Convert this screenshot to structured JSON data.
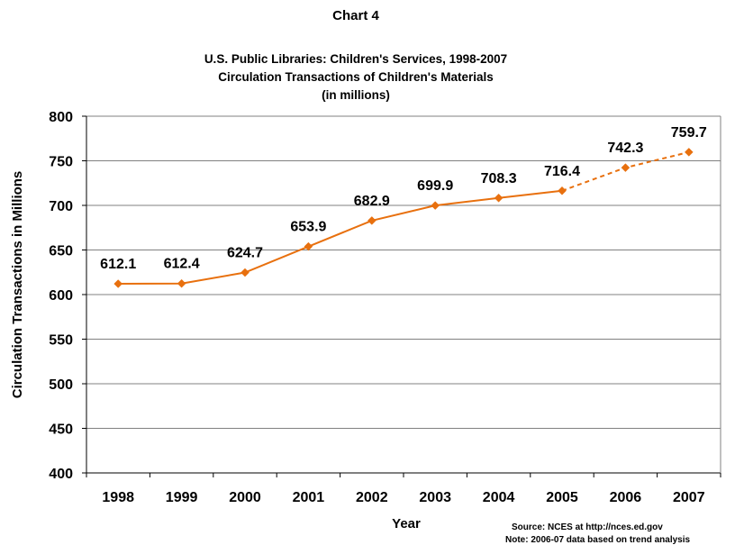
{
  "chart_data": {
    "type": "line",
    "chart_label": "Chart 4",
    "title": "U.S. Public Libraries: Children's Services, 1998-2007",
    "subtitle": "Circulation Transactions of Children's Materials",
    "subtitle2": "(in millions)",
    "xlabel": "Year",
    "ylabel": "Circulation Transactions in Millions",
    "categories": [
      "1998",
      "1999",
      "2000",
      "2001",
      "2002",
      "2003",
      "2004",
      "2005",
      "2006",
      "2007"
    ],
    "series": [
      {
        "values": [
          612.1,
          612.4,
          624.7,
          653.9,
          682.9,
          699.9,
          708.3,
          716.4,
          742.3,
          759.7
        ],
        "data_labels": [
          "612.1",
          "612.4",
          "624.7",
          "653.9",
          "682.9",
          "699.9",
          "708.3",
          "716.4",
          "742.3",
          "759.7"
        ],
        "solid_through": "2005",
        "dashed_from": "2005"
      }
    ],
    "ylim": [
      400,
      800
    ],
    "yticks": [
      "400",
      "450",
      "500",
      "550",
      "600",
      "650",
      "700",
      "750",
      "800"
    ],
    "grid": true,
    "line_color": "#E8700E",
    "source": "Source:  NCES at http://nces.ed.gov",
    "note": "Note:  2006-07 data based on  trend analysis"
  }
}
